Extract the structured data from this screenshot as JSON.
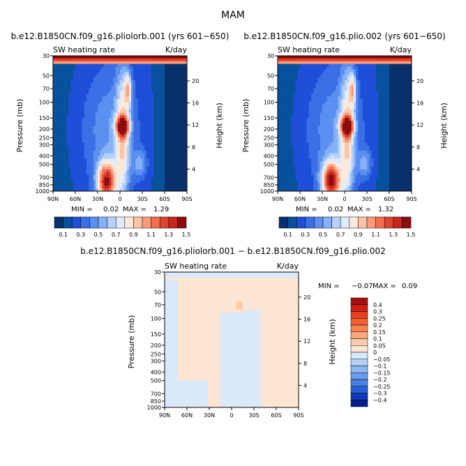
{
  "figure": {
    "title": "MAM"
  },
  "chart_data": [
    {
      "type": "heatmap",
      "title": "b.e12.B1850CN.f09_g16.pliolorb.001 (yrs 601−650)",
      "subtitle_left": "SW heating rate",
      "subtitle_right": "K/day",
      "ylabel": "Pressure (mb)",
      "ylabel_right": "Height (km)",
      "x_ticks": [
        "90N",
        "60N",
        "30N",
        "0",
        "30S",
        "60S",
        "90S"
      ],
      "y_ticks": [
        "30",
        "50",
        "70",
        "100",
        "150",
        "200",
        "250",
        "300",
        "400",
        "500",
        "700",
        "850",
        "1000"
      ],
      "y_ticks_right": [
        "20",
        "16",
        "12",
        "8",
        "4"
      ],
      "stats": {
        "min_label": "MIN =",
        "min": "0.02",
        "max_label": "MAX =",
        "max": "1.29"
      },
      "colorbar": {
        "labels": [
          "0.1",
          "0.3",
          "0.5",
          "0.7",
          "0.9",
          "1.1",
          "1.3",
          "1.5"
        ],
        "colors": [
          "#08306b",
          "#08519c",
          "#1f4fd8",
          "#3a6fe6",
          "#5b8ff0",
          "#86b1f6",
          "#b6d2fa",
          "#e0ecfc",
          "#fde8da",
          "#fcc4a9",
          "#f99a78",
          "#f36d4f",
          "#e2432d",
          "#c3271e",
          "#8e0c0c"
        ]
      },
      "xlim": [
        -90,
        90
      ],
      "ylim": [
        1000,
        30
      ]
    },
    {
      "type": "heatmap",
      "title": "b.e12.B1850CN.f09_g16.plio.002 (yrs 601−650)",
      "subtitle_left": "SW heating rate",
      "subtitle_right": "K/day",
      "ylabel": "Pressure (mb)",
      "ylabel_right": "Height (km)",
      "x_ticks": [
        "90N",
        "60N",
        "30N",
        "0",
        "30S",
        "60S",
        "90S"
      ],
      "y_ticks": [
        "30",
        "50",
        "70",
        "100",
        "150",
        "200",
        "250",
        "300",
        "400",
        "500",
        "700",
        "850",
        "1000"
      ],
      "y_ticks_right": [
        "20",
        "16",
        "12",
        "8",
        "4"
      ],
      "stats": {
        "min_label": "MIN =",
        "min": "0.02",
        "max_label": "MAX =",
        "max": "1.32"
      },
      "colorbar": {
        "labels": [
          "0.1",
          "0.3",
          "0.5",
          "0.7",
          "0.9",
          "1.1",
          "1.3",
          "1.5"
        ],
        "colors": [
          "#08306b",
          "#08519c",
          "#1f4fd8",
          "#3a6fe6",
          "#5b8ff0",
          "#86b1f6",
          "#b6d2fa",
          "#e0ecfc",
          "#fde8da",
          "#fcc4a9",
          "#f99a78",
          "#f36d4f",
          "#e2432d",
          "#c3271e",
          "#8e0c0c"
        ]
      },
      "xlim": [
        -90,
        90
      ],
      "ylim": [
        1000,
        30
      ]
    },
    {
      "type": "heatmap",
      "title": "b.e12.B1850CN.f09_g16.pliolorb.001 − b.e12.B1850CN.f09_g16.plio.002",
      "subtitle_left": "SW heating rate",
      "subtitle_right": "K/day",
      "ylabel": "Pressure (mb)",
      "ylabel_right": "Height (km)",
      "x_ticks": [
        "90N",
        "60N",
        "30N",
        "0",
        "30S",
        "60S",
        "90S"
      ],
      "y_ticks": [
        "30",
        "50",
        "70",
        "100",
        "150",
        "200",
        "250",
        "300",
        "400",
        "500",
        "700",
        "850",
        "1000"
      ],
      "y_ticks_right": [
        "20",
        "16",
        "12",
        "8",
        "4"
      ],
      "stats": {
        "min_label": "MIN =",
        "min": "−0.07",
        "max_label": "MAX =",
        "max": "0.09"
      },
      "colorbar": {
        "labels": [
          "0.4",
          "0.3",
          "0.25",
          "0.2",
          "0.15",
          "0.1",
          "0.05",
          "0",
          "−0.05",
          "−0.1",
          "−0.15",
          "−0.2",
          "−0.25",
          "−0.3",
          "−0.4"
        ],
        "colors": [
          "#a50f0f",
          "#cf1f12",
          "#e8401f",
          "#f2622f",
          "#f88350",
          "#fba77e",
          "#fdcbad",
          "#fde5d4",
          "#d9e9fa",
          "#b3d0f7",
          "#8db6f2",
          "#6a9bec",
          "#4a7fe4",
          "#2b5fd8",
          "#1239b8",
          "#061f8a"
        ]
      },
      "xlim": [
        -90,
        90
      ],
      "ylim": [
        1000,
        30
      ]
    }
  ]
}
